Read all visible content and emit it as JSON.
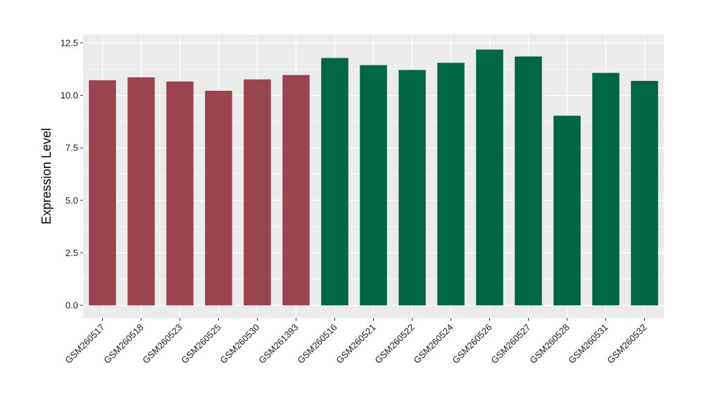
{
  "chart_data": {
    "type": "bar",
    "title": "",
    "xlabel": "",
    "ylabel": "Expression Level",
    "ylim": [
      -0.6,
      12.9
    ],
    "yticks": [
      0.0,
      2.5,
      5.0,
      7.5,
      10.0,
      12.5
    ],
    "ytick_labels": [
      "0.0",
      "2.5",
      "5.0",
      "7.5",
      "10.0",
      "12.5"
    ],
    "grid": true,
    "legend": "none",
    "categories": [
      "GSM260517",
      "GSM260518",
      "GSM260523",
      "GSM260525",
      "GSM260530",
      "GSM261393",
      "GSM260516",
      "GSM260521",
      "GSM260522",
      "GSM260524",
      "GSM260526",
      "GSM260527",
      "GSM260528",
      "GSM260531",
      "GSM260532"
    ],
    "values": [
      10.72,
      10.86,
      10.66,
      10.22,
      10.76,
      10.97,
      11.78,
      11.44,
      11.21,
      11.55,
      12.18,
      11.85,
      9.03,
      11.07,
      10.69
    ],
    "groups": [
      0,
      0,
      0,
      0,
      0,
      0,
      1,
      1,
      1,
      1,
      1,
      1,
      1,
      1,
      1
    ],
    "colors": {
      "group_0": "#9a4450",
      "group_1": "#006644",
      "panel": "#ebebeb",
      "grid": "#ffffff"
    }
  }
}
